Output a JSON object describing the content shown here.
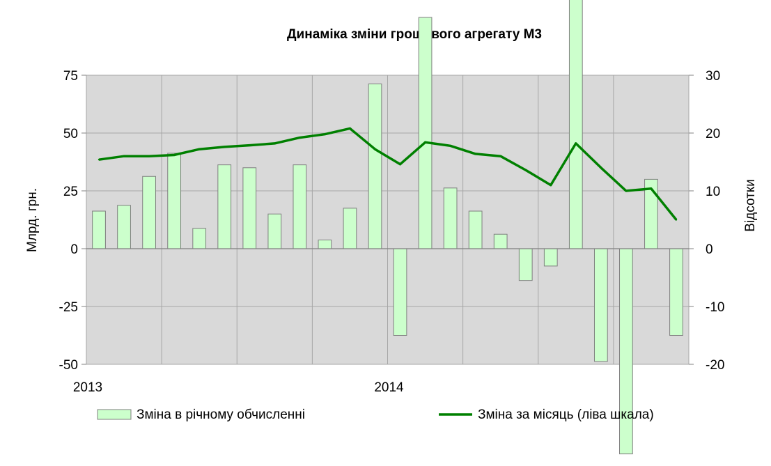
{
  "chart_data": {
    "type": "bar+line",
    "title": "Динаміка зміни грошового  агрегату М3",
    "left_axis": {
      "label": "Млрд. грн.",
      "ylim": [
        -50,
        75
      ],
      "ticks": [
        "75",
        "50",
        "25",
        "0",
        "-25",
        "-50"
      ]
    },
    "right_axis": {
      "label": "Відсотки",
      "ylim": [
        -20,
        30
      ],
      "ticks": [
        "30",
        "20",
        "10",
        "0",
        "-10",
        "-20"
      ]
    },
    "x_labels": [
      {
        "text": "2013",
        "index": 0
      },
      {
        "text": "2014",
        "index": 12
      }
    ],
    "grid": true,
    "bar_series": {
      "name": "Зміна в річному обчисленні",
      "color": "#ccffcc",
      "values": [
        6.5,
        7.5,
        12.5,
        16.5,
        3.5,
        14.5,
        14,
        6,
        14.5,
        1.5,
        7,
        28.5,
        -15,
        40,
        10.5,
        6.5,
        2.5,
        -5.5,
        -3,
        68.5,
        -19.5,
        -35.5,
        12,
        -15
      ]
    },
    "line_series": {
      "name": "Зміна за місяць (ліва шкала)",
      "color": "#008000",
      "values": [
        38.5,
        40,
        40,
        40.5,
        43,
        44,
        44.7,
        45.5,
        48,
        49.5,
        52,
        43,
        36.5,
        46,
        44.5,
        41,
        40,
        34,
        27.5,
        45.5,
        35,
        25,
        26,
        12.5
      ]
    },
    "legend": {
      "position": "bottom",
      "bar_label": "Зміна в річному обчисленні",
      "line_label": "Зміна за місяць (ліва шкала)"
    }
  }
}
